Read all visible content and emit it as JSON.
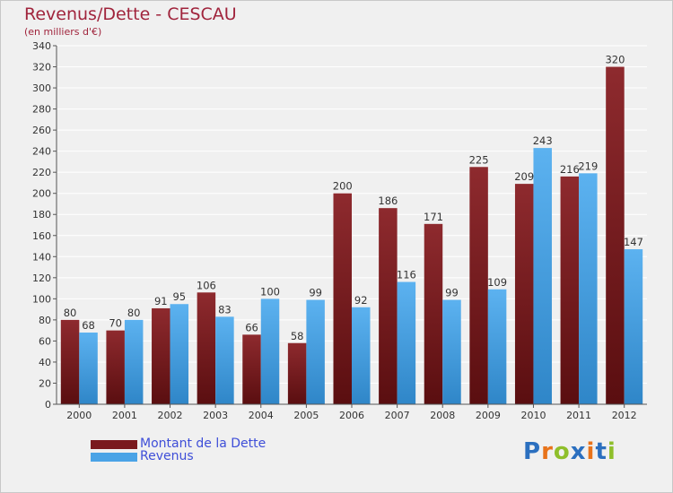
{
  "header": {
    "title": "Revenus/Dette - CESCAU",
    "subtitle": "(en milliers d'€)"
  },
  "colors": {
    "title": "#a0243c",
    "dette": "#7a1a1e",
    "revenus": "#4aa3e6",
    "legend_text": "#3e4ed8",
    "grid": "#ffffff",
    "plot_bg": "#f0f0f0"
  },
  "chart_data": {
    "type": "bar",
    "categories": [
      "2000",
      "2001",
      "2002",
      "2003",
      "2004",
      "2005",
      "2006",
      "2007",
      "2008",
      "2009",
      "2010",
      "2011",
      "2012"
    ],
    "series": [
      {
        "name": "Montant de la Dette",
        "values": [
          80,
          70,
          91,
          106,
          66,
          58,
          200,
          186,
          171,
          225,
          209,
          216,
          320
        ]
      },
      {
        "name": "Revenus",
        "values": [
          68,
          80,
          95,
          83,
          100,
          99,
          92,
          116,
          99,
          109,
          243,
          219,
          147
        ]
      }
    ],
    "ylim": [
      0,
      340
    ],
    "yticks": [
      0,
      20,
      40,
      60,
      80,
      100,
      120,
      140,
      160,
      180,
      200,
      220,
      240,
      260,
      280,
      300,
      320,
      340
    ],
    "grid": true,
    "legend_position": "bottom-left"
  },
  "legend": {
    "items": [
      {
        "label": "Montant de la Dette",
        "color": "#7a1a1e"
      },
      {
        "label": "Revenus",
        "color": "#4aa3e6"
      }
    ]
  },
  "logo": {
    "letters": [
      "P",
      "r",
      "o",
      "x",
      "i",
      "t",
      "i"
    ],
    "colors": [
      "#2b6fbf",
      "#e8731a",
      "#8fbf2b",
      "#2b6fbf",
      "#e8731a",
      "#2b6fbf",
      "#8fbf2b"
    ]
  }
}
